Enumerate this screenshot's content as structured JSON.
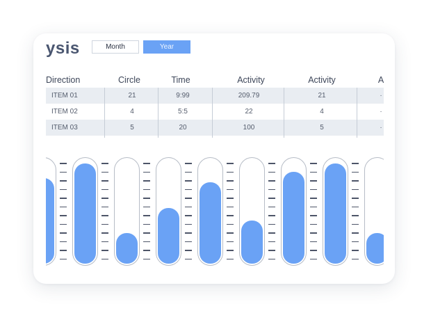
{
  "header": {
    "title": "ysis",
    "toggle_month": "Month",
    "toggle_year": "Year"
  },
  "table": {
    "columns": [
      "Direction",
      "Circle",
      "Time",
      "Activity",
      "Activity",
      "A"
    ],
    "rows": [
      [
        "ITEM 01",
        "21",
        "9:99",
        "209.79",
        "21",
        "·"
      ],
      [
        "ITEM 02",
        "4",
        "5:5",
        "22",
        "4",
        "·"
      ],
      [
        "ITEM 03",
        "5",
        "20",
        "100",
        "5",
        "·"
      ]
    ]
  },
  "meters": {
    "color": "#6aa2f5",
    "levels_percent": [
      82,
      96,
      29,
      53,
      78,
      41,
      88,
      96,
      29
    ]
  }
}
